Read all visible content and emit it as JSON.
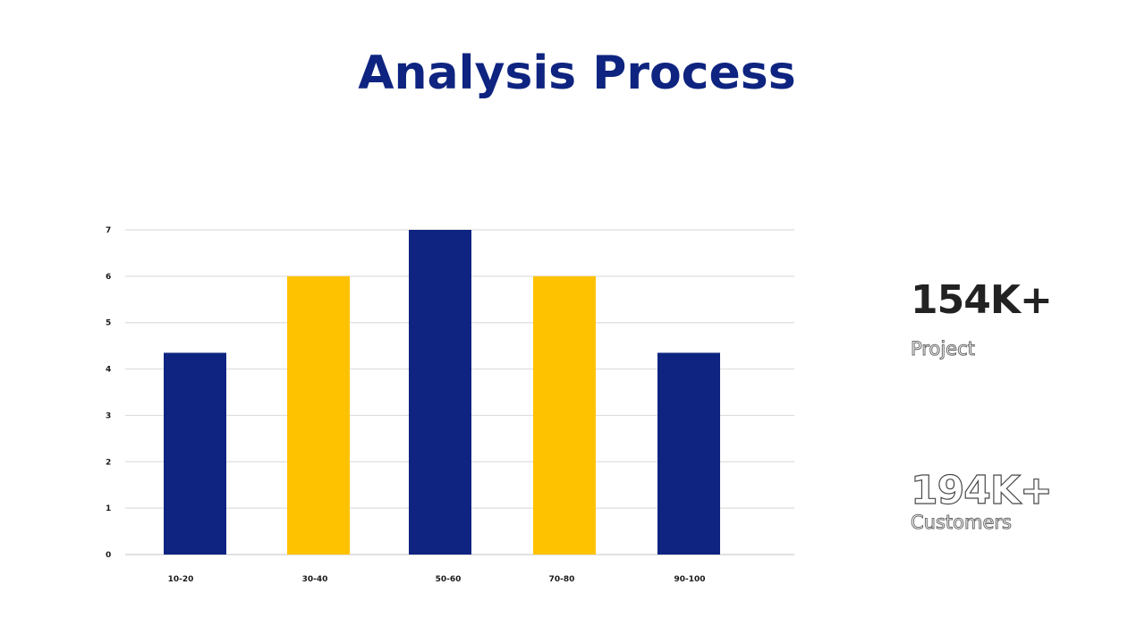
{
  "title": "Analysis Process",
  "chart_data": {
    "type": "bar",
    "categories": [
      "10-20",
      "30-40",
      "50-60",
      "70-80",
      "90-100"
    ],
    "values": [
      4.35,
      6,
      7,
      6,
      4.35
    ],
    "bar_colors": [
      "#0e2480",
      "#ffc200",
      "#0e2480",
      "#ffc200",
      "#0e2480"
    ],
    "yticks": [
      "0",
      "1",
      "2",
      "3",
      "4",
      "5",
      "6",
      "7"
    ],
    "ylim": [
      0,
      7
    ],
    "grid": true
  },
  "stats": [
    {
      "value": "154K+",
      "label": "Project"
    },
    {
      "value": "194K+",
      "label": "Customers"
    }
  ]
}
